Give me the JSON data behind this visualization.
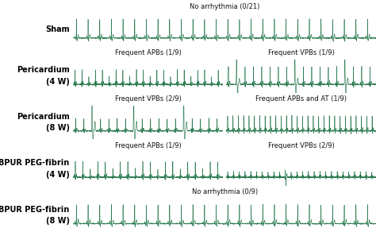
{
  "bg_color": "#e0f2f1",
  "ecg_color": "#2e7d52",
  "text_color": "#111111",
  "label_color": "#000000",
  "row_labels": [
    "Sham",
    "Pericardium\n(4 W)",
    "Pericardium\n(8 W)",
    "BPUR PEG-fibrin\n(4 W)",
    "BPUR PEG-fibrin\n(8 W)"
  ],
  "panel_titles": [
    [
      "No arrhythmia (0/21)",
      null
    ],
    [
      "Frequent APBs (1/9)",
      "Frequent VPBs (1/9)"
    ],
    [
      "Frequent VPBs (2/9)",
      "Frequent APBs and AT (1/9)"
    ],
    [
      "Frequent APBs (1/9)",
      "Frequent VPBs (2/9)"
    ],
    [
      "No arrhythmia (0/9)",
      null
    ]
  ],
  "has_right": [
    false,
    true,
    true,
    true,
    false
  ],
  "title_fontsize": 6.0,
  "label_fontsize": 7.0,
  "fig_bg": "#ffffff",
  "fig_w": 4.74,
  "fig_h": 2.92,
  "dpi": 100
}
